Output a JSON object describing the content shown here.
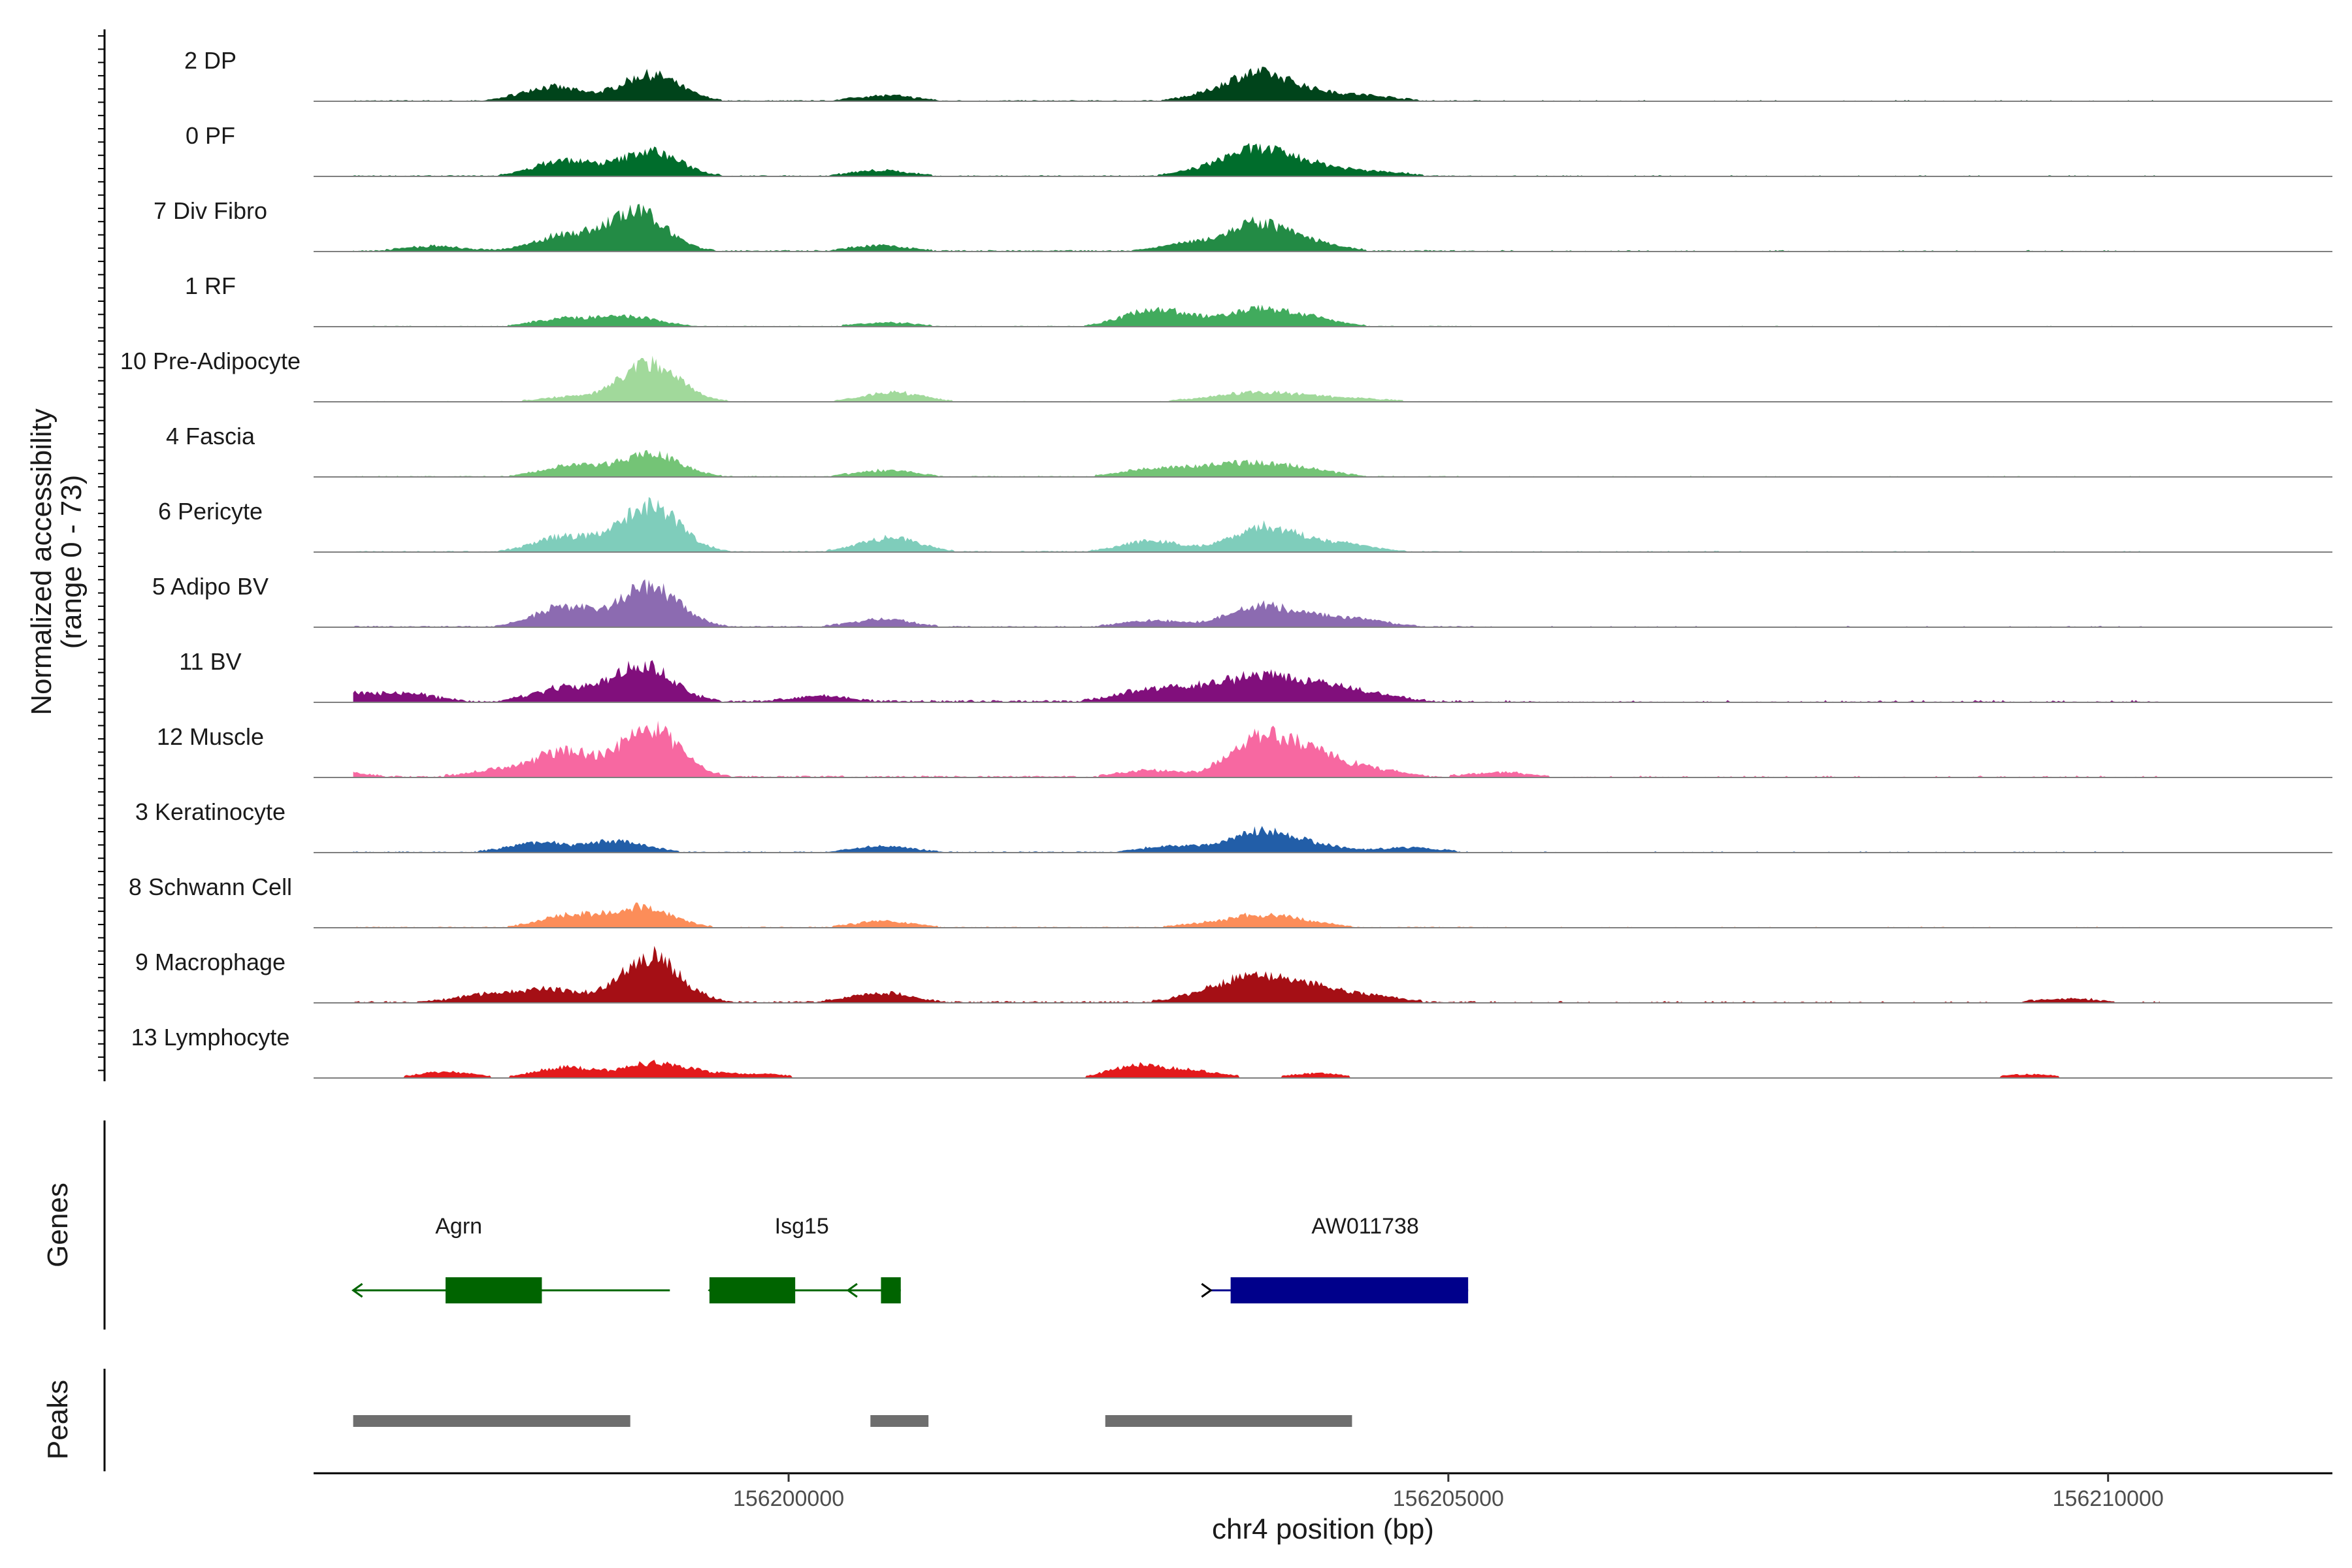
{
  "chart_data": {
    "type": "coverage_tracks",
    "y_axis_title_line1": "Normalized accessibility",
    "y_axis_title_line2": "(range 0 - 73)",
    "y_range": [
      0,
      73
    ],
    "x_axis_title": "chr4 position (bp)",
    "x_range": [
      156196400,
      156211700
    ],
    "x_ticks": [
      {
        "value": 156200000,
        "label": "156200000"
      },
      {
        "value": 156205000,
        "label": "156205000"
      },
      {
        "value": 156210000,
        "label": "156210000"
      }
    ],
    "tracks": [
      {
        "label": "2 DP",
        "color": "#00441b",
        "peaks": [
          [
            156198200,
            18
          ],
          [
            156198950,
            34
          ],
          [
            156200730,
            7
          ],
          [
            156203200,
            6
          ],
          [
            156203550,
            33
          ],
          [
            156203950,
            11
          ],
          [
            156204400,
            6
          ]
        ],
        "noise": 1.6
      },
      {
        "label": "0 PF",
        "color": "#006d2c",
        "peaks": [
          [
            156198300,
            20
          ],
          [
            156198950,
            32
          ],
          [
            156200700,
            7
          ],
          [
            156203200,
            8
          ],
          [
            156203550,
            31
          ],
          [
            156203950,
            14
          ],
          [
            156204450,
            6
          ]
        ],
        "noise": 1.6
      },
      {
        "label": "7 Div Fibro",
        "color": "#238b45",
        "peaks": [
          [
            156197300,
            6
          ],
          [
            156198300,
            20
          ],
          [
            156198850,
            50
          ],
          [
            156200700,
            7
          ],
          [
            156203050,
            10
          ],
          [
            156203550,
            34
          ],
          [
            156203950,
            10
          ]
        ],
        "noise": 2.0
      },
      {
        "label": "1 RF",
        "color": "#41ab5d",
        "peaks": [
          [
            156198300,
            10
          ],
          [
            156198800,
            12
          ],
          [
            156200750,
            5
          ],
          [
            156202730,
            18
          ],
          [
            156203000,
            8
          ],
          [
            156203550,
            21
          ],
          [
            156203950,
            10
          ]
        ],
        "noise": 1.2
      },
      {
        "label": "10 Pre-Adipocyte",
        "color": "#a1d99b",
        "peaks": [
          [
            156198350,
            6
          ],
          [
            156198950,
            50
          ],
          [
            156200790,
            12
          ],
          [
            156203200,
            4
          ],
          [
            156203560,
            10
          ],
          [
            156203950,
            6
          ],
          [
            156204400,
            3
          ]
        ],
        "noise": 1.0
      },
      {
        "label": "4 Fascia",
        "color": "#74c476",
        "peaks": [
          [
            156198350,
            14
          ],
          [
            156198950,
            30
          ],
          [
            156200730,
            8
          ],
          [
            156202750,
            10
          ],
          [
            156203200,
            10
          ],
          [
            156203560,
            14
          ],
          [
            156203950,
            8
          ]
        ],
        "noise": 1.4
      },
      {
        "label": "6 Pericyte",
        "color": "#7fcdbb",
        "peaks": [
          [
            156198300,
            20
          ],
          [
            156198950,
            60
          ],
          [
            156200770,
            18
          ],
          [
            156202750,
            14
          ],
          [
            156203560,
            30
          ],
          [
            156203950,
            12
          ],
          [
            156204300,
            6
          ]
        ],
        "noise": 1.6
      },
      {
        "label": "5 Adipo BV",
        "color": "#8c6bb1",
        "peaks": [
          [
            156198300,
            26
          ],
          [
            156198950,
            52
          ],
          [
            156200700,
            10
          ],
          [
            156202750,
            8
          ],
          [
            156203530,
            26
          ],
          [
            156203950,
            12
          ],
          [
            156204350,
            8
          ]
        ],
        "noise": 1.8
      },
      {
        "label": "11 BV",
        "color": "#810f7c",
        "peaks": [
          [
            156196550,
            12
          ],
          [
            156197100,
            10
          ],
          [
            156198300,
            18
          ],
          [
            156198900,
            48
          ],
          [
            156200250,
            7
          ],
          [
            156202700,
            14
          ],
          [
            156203150,
            16
          ],
          [
            156203550,
            26
          ],
          [
            156203950,
            22
          ],
          [
            156204400,
            10
          ]
        ],
        "noise": 3.0
      },
      {
        "label": "12 Muscle",
        "color": "#f768a1",
        "peaks": [
          [
            156196550,
            6
          ],
          [
            156197800,
            8
          ],
          [
            156198300,
            32
          ],
          [
            156198950,
            62
          ],
          [
            156202750,
            8
          ],
          [
            156203560,
            48
          ],
          [
            156203950,
            28
          ],
          [
            156204400,
            10
          ],
          [
            156205400,
            6
          ]
        ],
        "noise": 2.5
      },
      {
        "label": "3 Keratinocyte",
        "color": "#225ea8",
        "peaks": [
          [
            156198100,
            12
          ],
          [
            156198700,
            14
          ],
          [
            156200730,
            8
          ],
          [
            156202900,
            8
          ],
          [
            156203550,
            26
          ],
          [
            156203950,
            10
          ],
          [
            156204700,
            6
          ]
        ],
        "noise": 1.6
      },
      {
        "label": "8 Schwann Cell",
        "color": "#fc8d59",
        "peaks": [
          [
            156198350,
            16
          ],
          [
            156198900,
            26
          ],
          [
            156200730,
            8
          ],
          [
            156203150,
            4
          ],
          [
            156203560,
            14
          ],
          [
            156203900,
            6
          ]
        ],
        "noise": 1.4
      },
      {
        "label": "9 Macrophage",
        "color": "#a50f15",
        "peaks": [
          [
            156197700,
            10
          ],
          [
            156198200,
            16
          ],
          [
            156198950,
            60
          ],
          [
            156200700,
            12
          ],
          [
            156203200,
            12
          ],
          [
            156203550,
            28
          ],
          [
            156203950,
            18
          ],
          [
            156204400,
            8
          ],
          [
            156209700,
            5
          ]
        ],
        "noise": 2.4
      },
      {
        "label": "13 Lymphocyte",
        "color": "#e31a1c",
        "peaks": [
          [
            156197400,
            8
          ],
          [
            156198300,
            14
          ],
          [
            156198950,
            18
          ],
          [
            156199300,
            6
          ],
          [
            156199800,
            5
          ],
          [
            156202650,
            16
          ],
          [
            156203100,
            8
          ],
          [
            156204000,
            6
          ],
          [
            156209400,
            5
          ]
        ],
        "noise": 0.0
      }
    ],
    "genes": [
      {
        "name": "Agrn",
        "start": 156196700,
        "end": 156199100,
        "strand": "-",
        "color": "#006400",
        "exons": [
          [
            156197400,
            156198130
          ]
        ],
        "label_x": 156197500
      },
      {
        "name": "Isg15",
        "start": 156199400,
        "end": 156200850,
        "strand": "-",
        "color": "#006400",
        "exons": [
          [
            156199400,
            156200050
          ],
          [
            156200700,
            156200850
          ]
        ],
        "label_x": 156200100
      },
      {
        "name": "AW011738",
        "start": 156203200,
        "end": 156205150,
        "strand": "+",
        "color": "#00008b",
        "exons": [
          [
            156203350,
            156205150
          ]
        ],
        "label_x": 156204370
      }
    ],
    "genes_panel_title": "Genes",
    "peaks_panel_title": "Peaks",
    "peaks_regions": [
      [
        156196700,
        156198800
      ],
      [
        156200620,
        156201060
      ],
      [
        156202400,
        156204270
      ]
    ]
  }
}
